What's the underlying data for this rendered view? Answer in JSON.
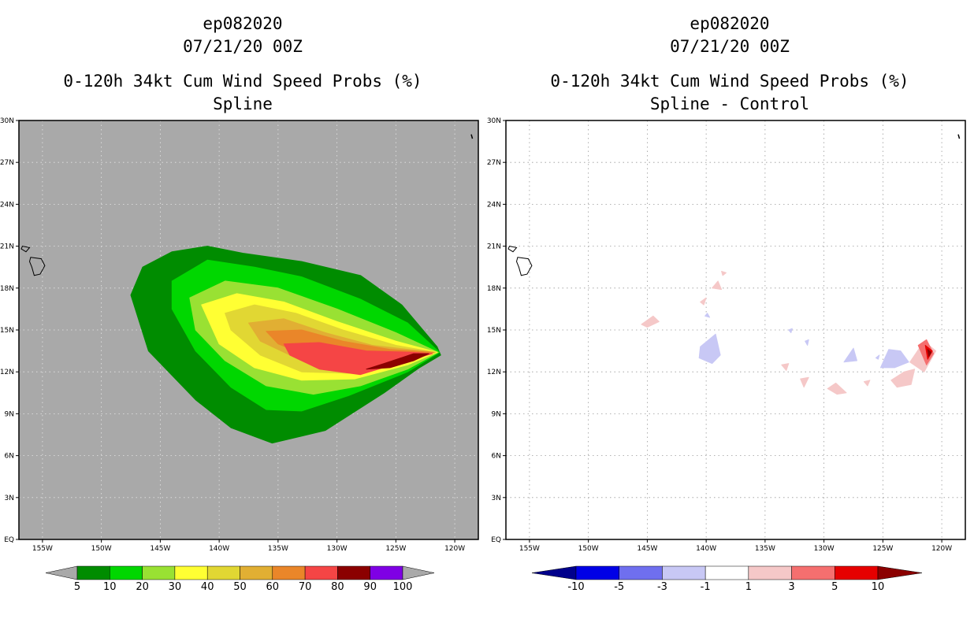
{
  "chart_data": [
    {
      "type": "contour-map",
      "storm_id": "ep082020",
      "datetime": "07/21/20 00Z",
      "title": "0-120h 34kt Cum Wind Speed Probs (%)",
      "subtitle": "Spline",
      "x_ticks": [
        "155W",
        "150W",
        "145W",
        "140W",
        "135W",
        "130W",
        "125W",
        "120W"
      ],
      "y_ticks": [
        "EQ",
        "3N",
        "6N",
        "9N",
        "12N",
        "15N",
        "18N",
        "21N",
        "24N",
        "27N",
        "30N"
      ],
      "x_range_deg_lon": [
        -157,
        -118
      ],
      "y_range_deg_lat": [
        0,
        30
      ],
      "background_color": "#a9a9a9",
      "colorbar": {
        "levels": [
          "5",
          "10",
          "20",
          "30",
          "40",
          "50",
          "60",
          "70",
          "80",
          "90",
          "100"
        ],
        "colors": [
          "#008c00",
          "#00d700",
          "#99e133",
          "#ffff33",
          "#e1d733",
          "#e1af33",
          "#ea8629",
          "#f54545",
          "#8b0000",
          "#7f00e5"
        ]
      },
      "contours": [
        {
          "level": 5,
          "color": "#008c00",
          "points": [
            [
              -146.5,
              19.5
            ],
            [
              -144,
              20.6
            ],
            [
              -141,
              21.0
            ],
            [
              -138,
              20.5
            ],
            [
              -133,
              19.9
            ],
            [
              -128,
              18.9
            ],
            [
              -124.5,
              16.8
            ],
            [
              -121.5,
              13.8
            ],
            [
              -121.2,
              13.2
            ],
            [
              -123,
              12.3
            ],
            [
              -126,
              10.5
            ],
            [
              -131,
              7.8
            ],
            [
              -135.5,
              6.9
            ],
            [
              -139,
              8.0
            ],
            [
              -142,
              10.0
            ],
            [
              -146,
              13.5
            ],
            [
              -147.5,
              17.5
            ]
          ]
        },
        {
          "level": 10,
          "color": "#00d700",
          "points": [
            [
              -144,
              18.5
            ],
            [
              -141,
              20.0
            ],
            [
              -137,
              19.5
            ],
            [
              -133,
              18.8
            ],
            [
              -128,
              17.2
            ],
            [
              -124,
              15.5
            ],
            [
              -121.3,
              13.4
            ],
            [
              -124,
              12.0
            ],
            [
              -129,
              10.3
            ],
            [
              -133,
              9.2
            ],
            [
              -136,
              9.3
            ],
            [
              -139,
              10.9
            ],
            [
              -142,
              13.5
            ],
            [
              -144,
              16.5
            ]
          ]
        },
        {
          "level": 20,
          "color": "#99e133",
          "points": [
            [
              -142.5,
              17.3
            ],
            [
              -139.5,
              18.5
            ],
            [
              -135,
              18.0
            ],
            [
              -130,
              16.5
            ],
            [
              -125,
              14.8
            ],
            [
              -121.4,
              13.4
            ],
            [
              -124,
              12.2
            ],
            [
              -128,
              11.0
            ],
            [
              -132,
              10.4
            ],
            [
              -136,
              11.0
            ],
            [
              -139.5,
              12.8
            ],
            [
              -142,
              15.0
            ]
          ]
        },
        {
          "level": 30,
          "color": "#ffff33",
          "points": [
            [
              -141.5,
              16.8
            ],
            [
              -138.5,
              17.6
            ],
            [
              -134.5,
              17.0
            ],
            [
              -130,
              15.6
            ],
            [
              -125,
              14.2
            ],
            [
              -121.5,
              13.4
            ],
            [
              -124,
              12.5
            ],
            [
              -128.5,
              11.5
            ],
            [
              -133,
              11.4
            ],
            [
              -137,
              12.3
            ],
            [
              -140,
              14.0
            ]
          ]
        },
        {
          "level": 40,
          "color": "#e1d733",
          "points": [
            [
              -139.5,
              16.2
            ],
            [
              -137,
              16.8
            ],
            [
              -133.5,
              16.2
            ],
            [
              -129.5,
              15.0
            ],
            [
              -125,
              13.9
            ],
            [
              -121.6,
              13.4
            ],
            [
              -124.5,
              12.6
            ],
            [
              -129,
              11.9
            ],
            [
              -133,
              12.0
            ],
            [
              -136.5,
              13.2
            ],
            [
              -139,
              15.0
            ]
          ]
        },
        {
          "level": 50,
          "color": "#e1af33",
          "points": [
            [
              -137.5,
              15.5
            ],
            [
              -134.5,
              15.8
            ],
            [
              -131,
              14.8
            ],
            [
              -127,
              13.9
            ],
            [
              -121.7,
              13.4
            ],
            [
              -125,
              12.8
            ],
            [
              -129,
              12.2
            ],
            [
              -133,
              12.8
            ],
            [
              -136.5,
              14.2
            ]
          ]
        },
        {
          "level": 60,
          "color": "#ea8629",
          "points": [
            [
              -136,
              14.9
            ],
            [
              -133,
              15.0
            ],
            [
              -129.5,
              14.2
            ],
            [
              -125.5,
              13.6
            ],
            [
              -121.8,
              13.4
            ],
            [
              -125,
              12.9
            ],
            [
              -128.5,
              12.5
            ],
            [
              -132,
              13.0
            ],
            [
              -135,
              14.0
            ]
          ]
        },
        {
          "level": 70,
          "color": "#f54545",
          "points": [
            [
              -134.5,
              14.0
            ],
            [
              -131.5,
              14.1
            ],
            [
              -127.5,
              13.5
            ],
            [
              -123.5,
              13.4
            ],
            [
              -121.9,
              13.3
            ],
            [
              -124.5,
              12.7
            ],
            [
              -128,
              11.8
            ],
            [
              -131.5,
              12.2
            ],
            [
              -134,
              13.2
            ]
          ]
        },
        {
          "level": 80,
          "color": "#8b0000",
          "points": [
            [
              -126,
              12.6
            ],
            [
              -123.5,
              13.3
            ],
            [
              -122.2,
              13.3
            ],
            [
              -123.5,
              12.8
            ],
            [
              -125.5,
              12.3
            ],
            [
              -127.5,
              12.2
            ]
          ]
        }
      ]
    },
    {
      "type": "contour-map",
      "storm_id": "ep082020",
      "datetime": "07/21/20 00Z",
      "title": "0-120h 34kt Cum Wind Speed Probs (%)",
      "subtitle": "Spline - Control",
      "x_ticks": [
        "155W",
        "150W",
        "145W",
        "140W",
        "135W",
        "130W",
        "125W",
        "120W"
      ],
      "y_ticks": [
        "EQ",
        "3N",
        "6N",
        "9N",
        "12N",
        "15N",
        "18N",
        "21N",
        "24N",
        "27N",
        "30N"
      ],
      "x_range_deg_lon": [
        -157,
        -118
      ],
      "y_range_deg_lat": [
        0,
        30
      ],
      "background_color": "#ffffff",
      "grid": true,
      "colorbar": {
        "levels": [
          "-10",
          "-5",
          "-3",
          "-1",
          "1",
          "3",
          "5",
          "10"
        ],
        "colors": [
          "#00008b",
          "#0000e6",
          "#6f6fef",
          "#c8c8f5",
          "#ffffff",
          "#f5c8c8",
          "#f56f6f",
          "#e60000",
          "#8b0000"
        ]
      },
      "contours": [
        {
          "level": 1,
          "color": "#f5c8c8",
          "points": [
            [
              -145.5,
              15.4
            ],
            [
              -144.5,
              16.0
            ],
            [
              -144,
              15.6
            ],
            [
              -145,
              15.2
            ]
          ]
        },
        {
          "level": 1,
          "color": "#f5c8c8",
          "points": [
            [
              -139.5,
              18.0
            ],
            [
              -139,
              18.5
            ],
            [
              -138.7,
              17.9
            ]
          ]
        },
        {
          "level": 1,
          "color": "#f5c8c8",
          "points": [
            [
              -138.7,
              19.2
            ],
            [
              -138.3,
              19.1
            ],
            [
              -138.6,
              18.9
            ]
          ]
        },
        {
          "level": 1,
          "color": "#f5c8c8",
          "points": [
            [
              -140.5,
              17.0
            ],
            [
              -140,
              17.3
            ],
            [
              -140.2,
              16.8
            ]
          ]
        },
        {
          "level": 1,
          "color": "#f5c8c8",
          "points": [
            [
              -133.6,
              12.5
            ],
            [
              -133,
              12.6
            ],
            [
              -133.2,
              12.1
            ]
          ]
        },
        {
          "level": 1,
          "color": "#f5c8c8",
          "points": [
            [
              -132,
              11.5
            ],
            [
              -131.3,
              11.6
            ],
            [
              -131.7,
              10.9
            ]
          ]
        },
        {
          "level": 1,
          "color": "#f5c8c8",
          "points": [
            [
              -129.7,
              10.8
            ],
            [
              -129,
              11.2
            ],
            [
              -128.1,
              10.5
            ],
            [
              -128.9,
              10.4
            ]
          ]
        },
        {
          "level": 1,
          "color": "#f5c8c8",
          "points": [
            [
              -126.6,
              11.3
            ],
            [
              -126.1,
              11.4
            ],
            [
              -126.3,
              11.0
            ]
          ]
        },
        {
          "level": 1,
          "color": "#f5c8c8",
          "points": [
            [
              -124.3,
              11.4
            ],
            [
              -123.2,
              12.0
            ],
            [
              -122.3,
              12.2
            ],
            [
              -122.6,
              11.1
            ],
            [
              -123.8,
              10.9
            ]
          ]
        },
        {
          "level": 1,
          "color": "#f5c8c8",
          "points": [
            [
              -122.7,
              12.7
            ],
            [
              -121.5,
              14.2
            ],
            [
              -120.5,
              13.5
            ],
            [
              -121.5,
              12.0
            ]
          ]
        },
        {
          "level": 3,
          "color": "#f56f6f",
          "points": [
            [
              -122.0,
              13.9
            ],
            [
              -121.3,
              14.3
            ],
            [
              -120.7,
              13.3
            ],
            [
              -121.3,
              12.5
            ]
          ]
        },
        {
          "level": 5,
          "color": "#e60000",
          "points": [
            [
              -121.4,
              13.9
            ],
            [
              -120.8,
              13.5
            ],
            [
              -121.2,
              12.9
            ]
          ]
        },
        {
          "level": 10,
          "color": "#8b0000",
          "points": [
            [
              -121.2,
              13.6
            ],
            [
              -120.9,
              13.4
            ],
            [
              -121.1,
              13.1
            ]
          ]
        },
        {
          "level": -1,
          "color": "#c8c8f5",
          "points": [
            [
              -140.5,
              13.8
            ],
            [
              -139.2,
              14.7
            ],
            [
              -138.8,
              13.2
            ],
            [
              -139.5,
              12.6
            ],
            [
              -140.6,
              13.0
            ]
          ]
        },
        {
          "level": -1,
          "color": "#c8c8f5",
          "points": [
            [
              -140.1,
              16.0
            ],
            [
              -139.9,
              16.2
            ],
            [
              -139.7,
              15.9
            ]
          ]
        },
        {
          "level": -1,
          "color": "#c8c8f5",
          "points": [
            [
              -133,
              15.0
            ],
            [
              -132.7,
              15.1
            ],
            [
              -132.8,
              14.8
            ]
          ]
        },
        {
          "level": -1,
          "color": "#c8c8f5",
          "points": [
            [
              -131.6,
              14.2
            ],
            [
              -131.3,
              14.3
            ],
            [
              -131.4,
              13.9
            ]
          ]
        },
        {
          "level": -1,
          "color": "#c8c8f5",
          "points": [
            [
              -128.3,
              12.7
            ],
            [
              -127.5,
              13.7
            ],
            [
              -127.2,
              12.8
            ]
          ]
        },
        {
          "level": -1,
          "color": "#c8c8f5",
          "points": [
            [
              -125.6,
              13.0
            ],
            [
              -125.3,
              13.2
            ],
            [
              -125.4,
              12.9
            ]
          ]
        },
        {
          "level": -1,
          "color": "#c8c8f5",
          "points": [
            [
              -125.2,
              12.3
            ],
            [
              -124.5,
              13.6
            ],
            [
              -123.5,
              13.5
            ],
            [
              -122.8,
              12.7
            ],
            [
              -124,
              12.3
            ]
          ]
        }
      ]
    }
  ]
}
